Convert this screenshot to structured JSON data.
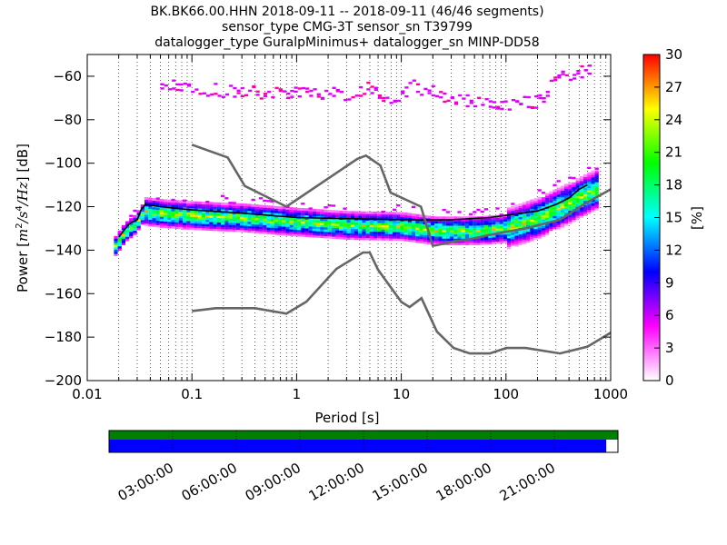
{
  "title": {
    "line1": "BK.BK66.00.HHN   2018-09-11 -- 2018-09-11  (46/46 segments)",
    "line2": "sensor_type CMG-3T sensor_sn T39799",
    "line3": "datalogger_type GuralpMinimus+ datalogger_sn MINP-DD58"
  },
  "chart_data": {
    "type": "heatmap",
    "subtype": "probabilistic power spectral density",
    "xlabel": "Period [s]",
    "ylabel": "Power [m^2/s^4/Hz] [dB]",
    "x_scale": "log",
    "xlim": [
      0.01,
      1000
    ],
    "ylim": [
      -200,
      -50
    ],
    "x_ticks": [
      {
        "value": 0.01,
        "label": "0.01"
      },
      {
        "value": 0.1,
        "label": "0.1"
      },
      {
        "value": 1,
        "label": "1"
      },
      {
        "value": 10,
        "label": "10"
      },
      {
        "value": 100,
        "label": "100"
      },
      {
        "value": 1000,
        "label": "1000"
      }
    ],
    "y_ticks": [
      {
        "value": -60,
        "label": "−60"
      },
      {
        "value": -80,
        "label": "−80"
      },
      {
        "value": -100,
        "label": "−100"
      },
      {
        "value": -120,
        "label": "−120"
      },
      {
        "value": -140,
        "label": "−140"
      },
      {
        "value": -160,
        "label": "−160"
      },
      {
        "value": -180,
        "label": "−180"
      },
      {
        "value": -200,
        "label": "−200"
      }
    ],
    "grid": "vertical dotted",
    "colorbar": {
      "label": "[%]",
      "range": [
        0,
        30
      ],
      "ticks": [
        {
          "value": 0,
          "label": "0"
        },
        {
          "value": 3,
          "label": "3"
        },
        {
          "value": 6,
          "label": "6"
        },
        {
          "value": 9,
          "label": "9"
        },
        {
          "value": 12,
          "label": "12"
        },
        {
          "value": 15,
          "label": "15"
        },
        {
          "value": 18,
          "label": "18"
        },
        {
          "value": 21,
          "label": "21"
        },
        {
          "value": 24,
          "label": "24"
        },
        {
          "value": 27,
          "label": "27"
        },
        {
          "value": 30,
          "label": "30"
        }
      ],
      "colors": [
        "#ffffff",
        "#ff00ff",
        "#0000ff",
        "#00ffff",
        "#00ff00",
        "#ffff00",
        "#ff0000"
      ]
    },
    "noise_models": [
      {
        "points": [
          [
            0.1,
            -91.5
          ],
          [
            0.22,
            -97.4
          ],
          [
            0.32,
            -110.5
          ],
          [
            0.8,
            -120
          ],
          [
            3.8,
            -98
          ],
          [
            4.6,
            -96.5
          ],
          [
            6.3,
            -101
          ],
          [
            7.9,
            -113.5
          ],
          [
            15.4,
            -120
          ],
          [
            20,
            -138
          ],
          [
            21.9,
            -137.7
          ],
          [
            31.6,
            -136
          ],
          [
            45,
            -135
          ],
          [
            70,
            -133
          ],
          [
            101,
            -131.5
          ],
          [
            154,
            -130
          ],
          [
            328,
            -126
          ],
          [
            600,
            -118
          ],
          [
            1000,
            -112
          ]
        ]
      },
      {
        "points": [
          [
            0.1,
            -168
          ],
          [
            0.17,
            -166.7
          ],
          [
            0.4,
            -166.7
          ],
          [
            0.8,
            -169.2
          ],
          [
            1.24,
            -163.7
          ],
          [
            2.4,
            -148.6
          ],
          [
            4.3,
            -141.1
          ],
          [
            5,
            -141.1
          ],
          [
            6,
            -149
          ],
          [
            10,
            -163.8
          ],
          [
            12,
            -166.2
          ],
          [
            15.6,
            -162.1
          ],
          [
            21.9,
            -177.5
          ],
          [
            31.6,
            -185
          ],
          [
            45,
            -187.5
          ],
          [
            70,
            -187.5
          ],
          [
            101,
            -185
          ],
          [
            154,
            -185
          ],
          [
            328,
            -187.5
          ],
          [
            600,
            -184.4
          ],
          [
            1000,
            -178
          ]
        ]
      }
    ],
    "mode_curve": {
      "points": [
        [
          0.02,
          -134
        ],
        [
          0.025,
          -128
        ],
        [
          0.03,
          -126
        ],
        [
          0.033,
          -121
        ],
        [
          0.036,
          -119
        ],
        [
          0.05,
          -120
        ],
        [
          0.1,
          -121.5
        ],
        [
          0.3,
          -123
        ],
        [
          1,
          -125
        ],
        [
          3,
          -125.5
        ],
        [
          10,
          -126
        ],
        [
          30,
          -126
        ],
        [
          70,
          -125
        ],
        [
          100,
          -124
        ],
        [
          200,
          -122
        ],
        [
          300,
          -119
        ],
        [
          400,
          -116
        ],
        [
          500,
          -112
        ],
        [
          600,
          -110
        ]
      ]
    },
    "psd_heatmap": {
      "core_curve": [
        [
          0.018,
          -138
        ],
        [
          0.022,
          -132
        ],
        [
          0.028,
          -128
        ],
        [
          0.034,
          -122
        ],
        [
          0.05,
          -123
        ],
        [
          0.1,
          -124
        ],
        [
          0.3,
          -125
        ],
        [
          1,
          -127
        ],
        [
          3,
          -128.5
        ],
        [
          10,
          -129
        ],
        [
          20,
          -131
        ],
        [
          50,
          -131
        ],
        [
          100,
          -130
        ],
        [
          200,
          -125
        ],
        [
          400,
          -118
        ],
        [
          700,
          -112
        ]
      ],
      "upper_cluster": [
        [
          0.05,
          -64
        ],
        [
          0.1,
          -65
        ],
        [
          0.3,
          -67
        ],
        [
          1,
          -67
        ],
        [
          3,
          -68
        ],
        [
          5,
          -65
        ],
        [
          8,
          -71
        ],
        [
          12,
          -64
        ],
        [
          20,
          -67
        ],
        [
          30,
          -70
        ],
        [
          50,
          -71
        ],
        [
          100,
          -73
        ],
        [
          200,
          -71
        ],
        [
          300,
          -61
        ],
        [
          600,
          -57
        ]
      ]
    }
  },
  "timeline": {
    "coverage_fraction": 0.977,
    "coverage_colors": {
      "top": "#008000",
      "bottom": "#0000ff"
    },
    "time_labels": [
      "03:00:00",
      "06:00:00",
      "09:00:00",
      "12:00:00",
      "15:00:00",
      "18:00:00",
      "21:00:00"
    ]
  }
}
